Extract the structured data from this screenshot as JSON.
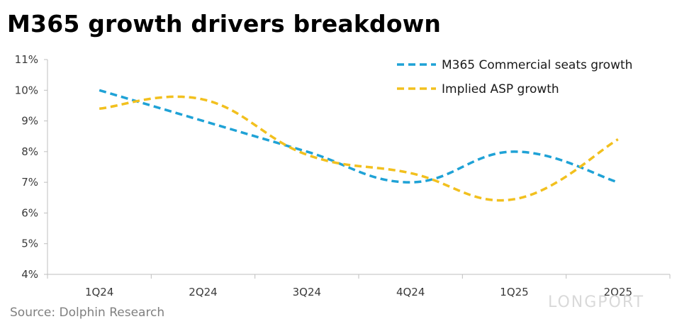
{
  "title": "M365 growth drivers breakdown",
  "source": "Source: Dolphin Research",
  "watermark": "LONGPORT",
  "chart_data": {
    "type": "line",
    "categories": [
      "1Q24",
      "2Q24",
      "3Q24",
      "4Q24",
      "1Q25",
      "2Q25"
    ],
    "series": [
      {
        "name": "M365 Commercial seats growth",
        "values": [
          10.0,
          9.0,
          8.0,
          7.0,
          8.0,
          7.0
        ],
        "color": "#1fa2d6",
        "style": "dashed-smooth"
      },
      {
        "name": "Implied ASP growth",
        "values": [
          9.4,
          9.7,
          7.9,
          7.3,
          6.45,
          8.4
        ],
        "color": "#f2c01e",
        "style": "dashed-smooth"
      }
    ],
    "y_ticks": [
      "4%",
      "5%",
      "6%",
      "7%",
      "8%",
      "9%",
      "10%",
      "11%"
    ],
    "ylim": [
      4,
      11
    ],
    "yunit": "%",
    "grid": false,
    "legend": "top-right"
  }
}
